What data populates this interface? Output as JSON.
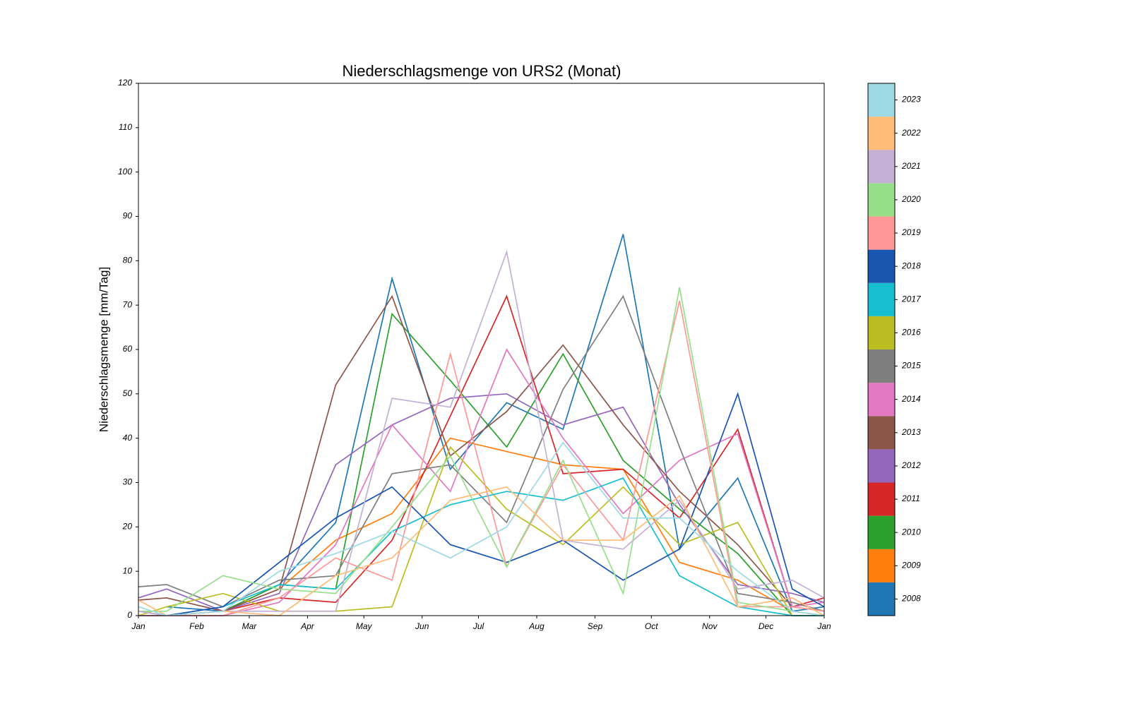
{
  "chart_data": {
    "type": "line",
    "title": "Niederschlagsmenge von URS2 (Monat)",
    "y_label": "Niederschlagsmenge [mm/Tag]",
    "x": [
      0,
      15,
      45,
      75,
      105,
      135,
      166,
      196,
      226,
      258,
      288,
      319,
      348,
      365
    ],
    "xlim": [
      0,
      365
    ],
    "xticks": [
      {
        "value": 0,
        "label": "Jan"
      },
      {
        "value": 31,
        "label": "Feb"
      },
      {
        "value": 59,
        "label": "Mar"
      },
      {
        "value": 90,
        "label": "Apr"
      },
      {
        "value": 120,
        "label": "May"
      },
      {
        "value": 151,
        "label": "Jun"
      },
      {
        "value": 181,
        "label": "Jul"
      },
      {
        "value": 212,
        "label": "Aug"
      },
      {
        "value": 243,
        "label": "Sep"
      },
      {
        "value": 273,
        "label": "Oct"
      },
      {
        "value": 304,
        "label": "Nov"
      },
      {
        "value": 334,
        "label": "Dec"
      },
      {
        "value": 365,
        "label": "Jan"
      }
    ],
    "ylim": [
      0,
      120
    ],
    "yticks": [
      0,
      10,
      20,
      30,
      40,
      50,
      60,
      70,
      80,
      90,
      100,
      110,
      120
    ],
    "series": [
      {
        "name": "2008",
        "color": "#1f77b4",
        "values": [
          null,
          2,
          1,
          7,
          21,
          76,
          33,
          48,
          42,
          86,
          15,
          31,
          1,
          2
        ]
      },
      {
        "name": "2009",
        "color": "#ff7f0e",
        "values": [
          1,
          0,
          1,
          6,
          17,
          23,
          40,
          37,
          34,
          33,
          12,
          8,
          1,
          0
        ]
      },
      {
        "name": "2010",
        "color": "#2ca02c",
        "values": [
          0,
          0,
          1,
          7,
          6,
          68,
          53,
          38,
          59,
          35,
          24,
          14,
          0,
          0
        ]
      },
      {
        "name": "2011",
        "color": "#d62728",
        "values": [
          0,
          0,
          1,
          4,
          3,
          17,
          45,
          72,
          32,
          33,
          22,
          42,
          2,
          4
        ]
      },
      {
        "name": "2012",
        "color": "#9467bd",
        "values": [
          4,
          6,
          1,
          5,
          34,
          43,
          49,
          50,
          43,
          47,
          25,
          7,
          5,
          3
        ]
      },
      {
        "name": "2013",
        "color": "#8c564b",
        "values": [
          3.5,
          4,
          1,
          6,
          52,
          72,
          36,
          46,
          61,
          43,
          28,
          16,
          2,
          1
        ]
      },
      {
        "name": "2014",
        "color": "#e377c2",
        "values": [
          0,
          0,
          0,
          3,
          16,
          43,
          28,
          60,
          40,
          23,
          35,
          41,
          2,
          3
        ]
      },
      {
        "name": "2015",
        "color": "#7f7f7f",
        "values": [
          6.5,
          7,
          2,
          8,
          9,
          32,
          34,
          21,
          51,
          72,
          38,
          5,
          3,
          1
        ]
      },
      {
        "name": "2016",
        "color": "#bcbd22",
        "values": [
          0,
          2,
          5,
          1,
          1,
          2,
          38,
          24,
          16,
          29,
          16,
          21,
          0,
          0
        ]
      },
      {
        "name": "2017",
        "color": "#17becf",
        "values": [
          1,
          0,
          2,
          7,
          6,
          19,
          25,
          28,
          26,
          31,
          9,
          2,
          0,
          0
        ]
      },
      {
        "name": "2018",
        "color": "#1a55b0",
        "values": [
          0,
          0,
          2,
          12,
          22,
          29,
          16,
          12,
          17,
          8,
          15,
          50,
          6,
          2
        ]
      },
      {
        "name": "2019",
        "color": "#ff9896",
        "values": [
          0,
          0,
          0,
          4,
          13,
          8,
          59,
          11,
          34,
          17,
          71,
          2,
          2,
          1
        ]
      },
      {
        "name": "2020",
        "color": "#98df8a",
        "values": [
          1,
          1,
          9,
          6,
          5,
          20,
          36,
          11,
          35,
          5,
          74,
          3,
          1,
          0
        ]
      },
      {
        "name": "2021",
        "color": "#c5b0d5",
        "values": [
          1,
          0,
          1,
          1,
          1,
          49,
          47,
          82,
          17,
          15,
          26,
          6,
          8,
          4
        ]
      },
      {
        "name": "2022",
        "color": "#ffbb78",
        "values": [
          3.5,
          0,
          1,
          0,
          9,
          13,
          26,
          29,
          17,
          17,
          27,
          2,
          4,
          0
        ]
      },
      {
        "name": "2023",
        "color": "#9edae5",
        "values": [
          2,
          0,
          1,
          10,
          14,
          19,
          13,
          20,
          39,
          22,
          22,
          10,
          1,
          0
        ]
      }
    ]
  }
}
